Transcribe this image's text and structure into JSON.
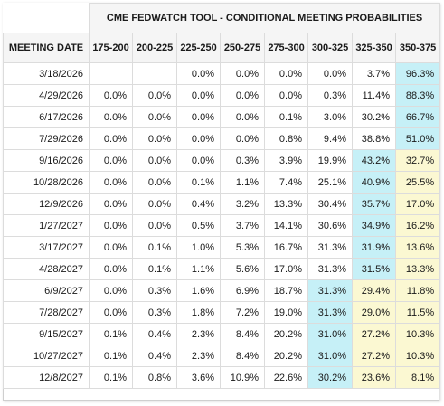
{
  "title": "CME FEDWATCH TOOL - CONDITIONAL MEETING PROBABILITIES",
  "columns": [
    "MEETING DATE",
    "175-200",
    "200-225",
    "225-250",
    "250-275",
    "275-300",
    "300-325",
    "325-350",
    "350-375"
  ],
  "highlight_colors": {
    "blue": "#c6f0f7",
    "yellow": "#fbf8d2"
  },
  "rows": [
    {
      "date": "3/18/2026",
      "values": [
        "",
        "",
        "0.0%",
        "0.0%",
        "0.0%",
        "0.0%",
        "3.7%",
        "96.3%"
      ],
      "hl": [
        "",
        "",
        "",
        "",
        "",
        "",
        "",
        "blue"
      ]
    },
    {
      "date": "4/29/2026",
      "values": [
        "0.0%",
        "0.0%",
        "0.0%",
        "0.0%",
        "0.0%",
        "0.3%",
        "11.4%",
        "88.3%"
      ],
      "hl": [
        "",
        "",
        "",
        "",
        "",
        "",
        "",
        "blue"
      ]
    },
    {
      "date": "6/17/2026",
      "values": [
        "0.0%",
        "0.0%",
        "0.0%",
        "0.0%",
        "0.1%",
        "3.0%",
        "30.2%",
        "66.7%"
      ],
      "hl": [
        "",
        "",
        "",
        "",
        "",
        "",
        "",
        "blue"
      ]
    },
    {
      "date": "7/29/2026",
      "values": [
        "0.0%",
        "0.0%",
        "0.0%",
        "0.0%",
        "0.8%",
        "9.4%",
        "38.8%",
        "51.0%"
      ],
      "hl": [
        "",
        "",
        "",
        "",
        "",
        "",
        "",
        "blue"
      ]
    },
    {
      "date": "9/16/2026",
      "values": [
        "0.0%",
        "0.0%",
        "0.0%",
        "0.3%",
        "3.9%",
        "19.9%",
        "43.2%",
        "32.7%"
      ],
      "hl": [
        "",
        "",
        "",
        "",
        "",
        "",
        "blue",
        "yellow"
      ]
    },
    {
      "date": "10/28/2026",
      "values": [
        "0.0%",
        "0.0%",
        "0.1%",
        "1.1%",
        "7.4%",
        "25.1%",
        "40.9%",
        "25.5%"
      ],
      "hl": [
        "",
        "",
        "",
        "",
        "",
        "",
        "blue",
        "yellow"
      ]
    },
    {
      "date": "12/9/2026",
      "values": [
        "0.0%",
        "0.0%",
        "0.4%",
        "3.2%",
        "13.3%",
        "30.4%",
        "35.7%",
        "17.0%"
      ],
      "hl": [
        "",
        "",
        "",
        "",
        "",
        "",
        "blue",
        "yellow"
      ]
    },
    {
      "date": "1/27/2027",
      "values": [
        "0.0%",
        "0.0%",
        "0.5%",
        "3.7%",
        "14.1%",
        "30.6%",
        "34.9%",
        "16.2%"
      ],
      "hl": [
        "",
        "",
        "",
        "",
        "",
        "",
        "blue",
        "yellow"
      ]
    },
    {
      "date": "3/17/2027",
      "values": [
        "0.0%",
        "0.1%",
        "1.0%",
        "5.3%",
        "16.7%",
        "31.3%",
        "31.9%",
        "13.6%"
      ],
      "hl": [
        "",
        "",
        "",
        "",
        "",
        "",
        "blue",
        "yellow"
      ]
    },
    {
      "date": "4/28/2027",
      "values": [
        "0.0%",
        "0.1%",
        "1.1%",
        "5.6%",
        "17.0%",
        "31.3%",
        "31.5%",
        "13.3%"
      ],
      "hl": [
        "",
        "",
        "",
        "",
        "",
        "",
        "blue",
        "yellow"
      ]
    },
    {
      "date": "6/9/2027",
      "values": [
        "0.0%",
        "0.3%",
        "1.6%",
        "6.9%",
        "18.7%",
        "31.3%",
        "29.4%",
        "11.8%"
      ],
      "hl": [
        "",
        "",
        "",
        "",
        "",
        "blue",
        "yellow",
        "yellow"
      ]
    },
    {
      "date": "7/28/2027",
      "values": [
        "0.0%",
        "0.3%",
        "1.8%",
        "7.2%",
        "19.0%",
        "31.3%",
        "29.0%",
        "11.5%"
      ],
      "hl": [
        "",
        "",
        "",
        "",
        "",
        "blue",
        "yellow",
        "yellow"
      ]
    },
    {
      "date": "9/15/2027",
      "values": [
        "0.1%",
        "0.4%",
        "2.3%",
        "8.4%",
        "20.2%",
        "31.0%",
        "27.2%",
        "10.3%"
      ],
      "hl": [
        "",
        "",
        "",
        "",
        "",
        "blue",
        "yellow",
        "yellow"
      ]
    },
    {
      "date": "10/27/2027",
      "values": [
        "0.1%",
        "0.4%",
        "2.3%",
        "8.4%",
        "20.2%",
        "31.0%",
        "27.2%",
        "10.3%"
      ],
      "hl": [
        "",
        "",
        "",
        "",
        "",
        "blue",
        "yellow",
        "yellow"
      ]
    },
    {
      "date": "12/8/2027",
      "values": [
        "0.1%",
        "0.8%",
        "3.6%",
        "10.9%",
        "22.6%",
        "30.2%",
        "23.6%",
        "8.1%"
      ],
      "hl": [
        "",
        "",
        "",
        "",
        "",
        "blue",
        "yellow",
        "yellow"
      ]
    }
  ]
}
